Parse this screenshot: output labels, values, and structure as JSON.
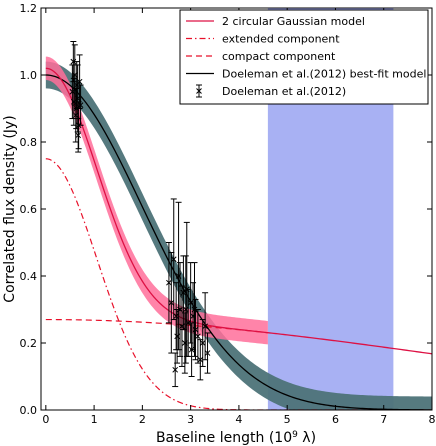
{
  "chart_data": {
    "type": "line",
    "xlabel": "Baseline length (10",
    "xlabel_exp": "9",
    "xlabel_tail": " λ)",
    "ylabel": "Correlated flux density (Jy)",
    "xlim": [
      -0.1,
      8
    ],
    "ylim": [
      0,
      1.2
    ],
    "xticks": [
      "0",
      "1",
      "2",
      "3",
      "4",
      "5",
      "6",
      "7",
      "8"
    ],
    "yticks": [
      "0.0",
      "0.2",
      "0.4",
      "0.6",
      "0.8",
      "1.0",
      "1.2"
    ],
    "shaded_region": {
      "x0": 4.6,
      "x1": 7.2,
      "color": "#9fa8f2"
    },
    "models": {
      "two_gauss": {
        "name": "2 circular Gaussian model",
        "total0": 1.02,
        "band": 0.035,
        "color": "#dd1144",
        "band_color": "#ff6f9a"
      },
      "extended": {
        "name": "extended component",
        "amp": 0.75,
        "sigma": 1.05,
        "color": "#e8102a"
      },
      "compact": {
        "name": "compact component",
        "amp": 0.27,
        "sigma": 8.2,
        "color": "#e8102a"
      },
      "doeleman": {
        "name": "Doeleman et al.(2012) best-fit model",
        "amp": 1.0,
        "sigma": 2.0,
        "color": "#000000",
        "band_color": "#4d7378",
        "band": 0.04
      }
    },
    "observations": {
      "name": "Doeleman et al.(2012)",
      "color": "#000000",
      "points": [
        {
          "x": 0.55,
          "y": 0.95,
          "err": 0.08
        },
        {
          "x": 0.58,
          "y": 0.92,
          "err": 0.07
        },
        {
          "x": 0.6,
          "y": 1.0,
          "err": 0.09
        },
        {
          "x": 0.62,
          "y": 0.88,
          "err": 0.08
        },
        {
          "x": 0.64,
          "y": 0.97,
          "err": 0.07
        },
        {
          "x": 0.66,
          "y": 0.93,
          "err": 0.1
        },
        {
          "x": 0.68,
          "y": 0.85,
          "err": 0.07
        },
        {
          "x": 0.7,
          "y": 0.98,
          "err": 0.08
        },
        {
          "x": 0.57,
          "y": 1.04,
          "err": 0.06
        },
        {
          "x": 0.63,
          "y": 0.9,
          "err": 0.06
        },
        {
          "x": 0.67,
          "y": 0.82,
          "err": 0.05
        },
        {
          "x": 0.72,
          "y": 0.91,
          "err": 0.06
        },
        {
          "x": 2.55,
          "y": 0.38,
          "err": 0.12
        },
        {
          "x": 2.6,
          "y": 0.32,
          "err": 0.15
        },
        {
          "x": 2.65,
          "y": 0.45,
          "err": 0.18
        },
        {
          "x": 2.7,
          "y": 0.28,
          "err": 0.1
        },
        {
          "x": 2.72,
          "y": 0.22,
          "err": 0.08
        },
        {
          "x": 2.75,
          "y": 0.4,
          "err": 0.22
        },
        {
          "x": 2.78,
          "y": 0.3,
          "err": 0.14
        },
        {
          "x": 2.82,
          "y": 0.25,
          "err": 0.12
        },
        {
          "x": 2.85,
          "y": 0.35,
          "err": 0.11
        },
        {
          "x": 2.88,
          "y": 0.2,
          "err": 0.09
        },
        {
          "x": 2.9,
          "y": 0.3,
          "err": 0.16
        },
        {
          "x": 2.95,
          "y": 0.26,
          "err": 0.1
        },
        {
          "x": 3.0,
          "y": 0.32,
          "err": 0.12
        },
        {
          "x": 3.02,
          "y": 0.18,
          "err": 0.08
        },
        {
          "x": 3.05,
          "y": 0.28,
          "err": 0.1
        },
        {
          "x": 3.1,
          "y": 0.24,
          "err": 0.09
        },
        {
          "x": 3.15,
          "y": 0.22,
          "err": 0.08
        },
        {
          "x": 3.2,
          "y": 0.15,
          "err": 0.06
        },
        {
          "x": 3.25,
          "y": 0.2,
          "err": 0.07
        },
        {
          "x": 3.35,
          "y": 0.17,
          "err": 0.06
        },
        {
          "x": 2.68,
          "y": 0.12,
          "err": 0.05
        },
        {
          "x": 2.92,
          "y": 0.36,
          "err": 0.2
        },
        {
          "x": 3.08,
          "y": 0.3,
          "err": 0.14
        },
        {
          "x": 3.3,
          "y": 0.25,
          "err": 0.1
        }
      ]
    },
    "legend": {
      "position": "top-right",
      "entries": [
        {
          "label": "2 circular Gaussian model",
          "style": "solid",
          "color": "#dd1144"
        },
        {
          "label": "extended component",
          "style": "dashdot",
          "color": "#e8102a"
        },
        {
          "label": "compact component",
          "style": "dashed",
          "color": "#e8102a"
        },
        {
          "label": "Doeleman et al.(2012) best-fit model",
          "style": "solid",
          "color": "#000000"
        },
        {
          "label": "Doeleman et al.(2012)",
          "style": "errorbar",
          "color": "#000000"
        }
      ]
    }
  }
}
